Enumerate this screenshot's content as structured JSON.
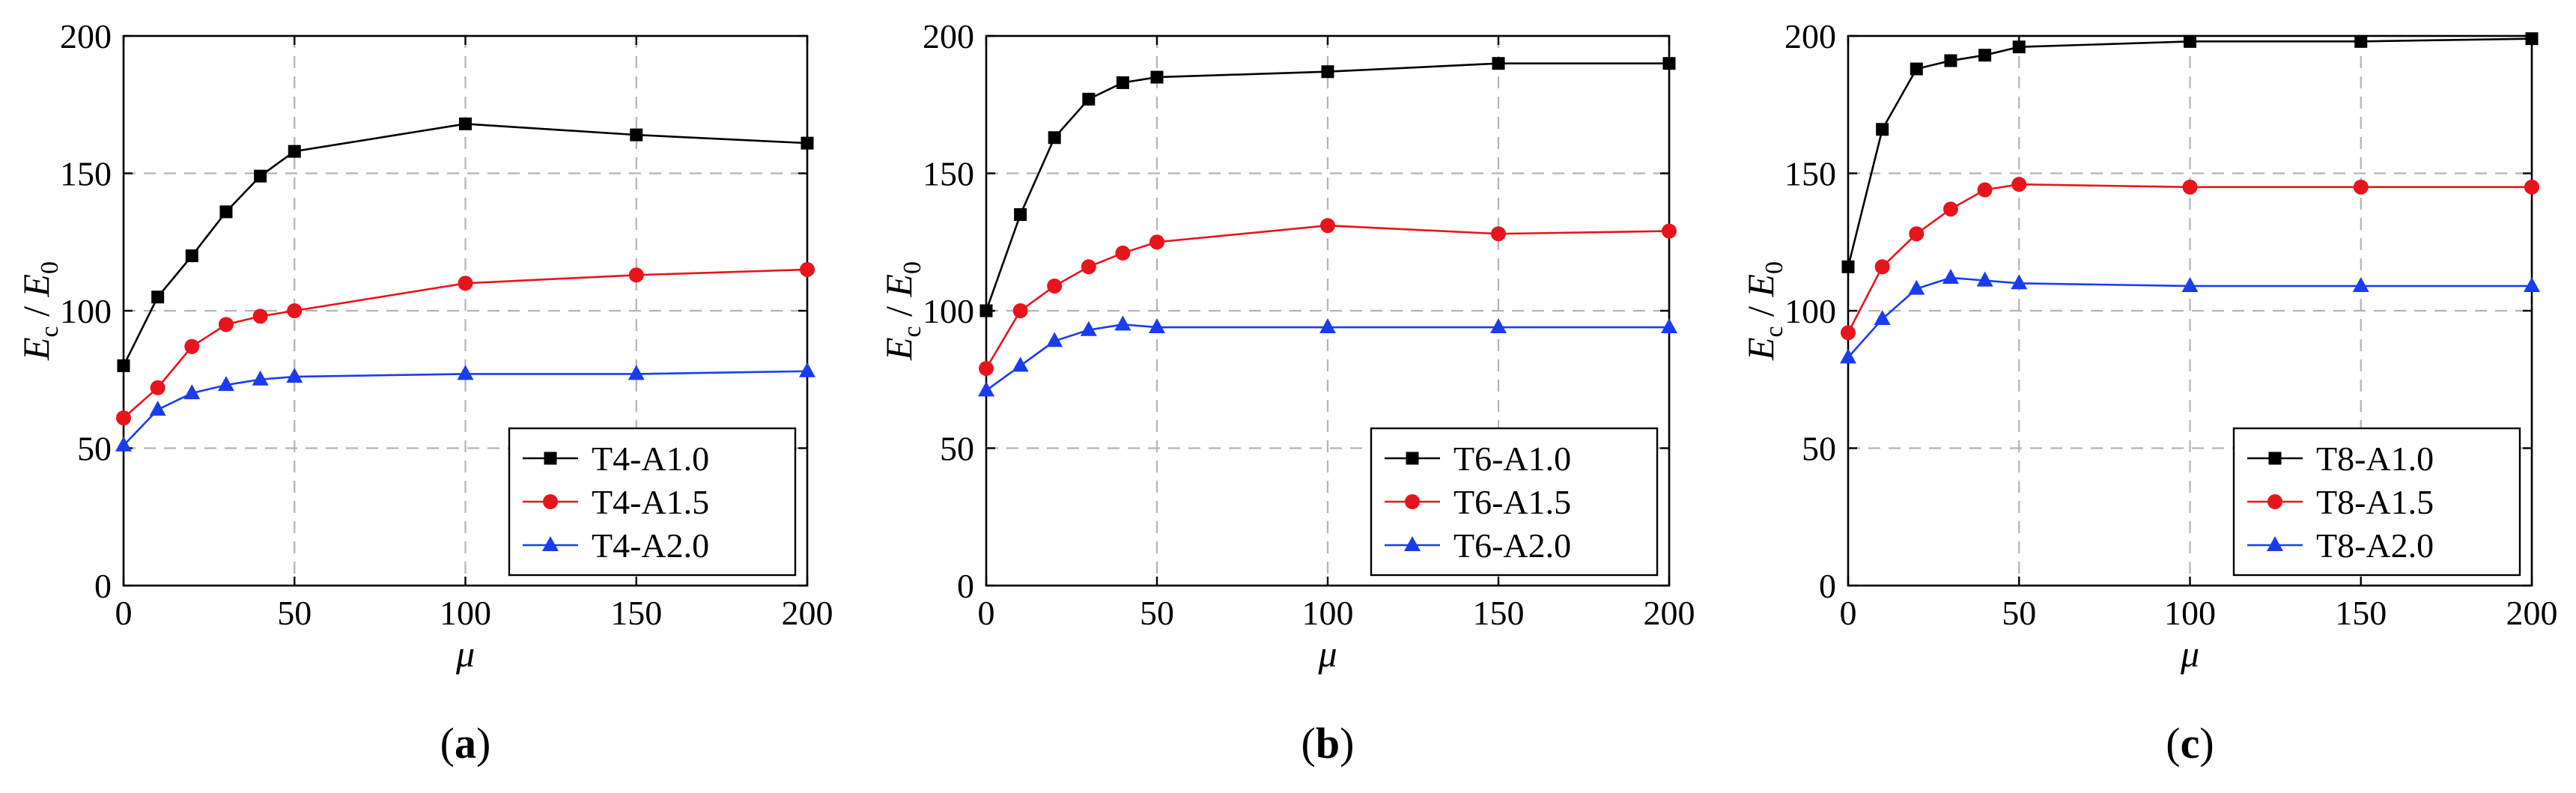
{
  "figure": {
    "ylabel_main": "E",
    "ylabel_sub": "c",
    "ylabel_sep": " / ",
    "ylabel_main2": "E",
    "ylabel_sub2": "0",
    "xlabel": "μ"
  },
  "chart_data": [
    {
      "type": "line",
      "panel_label": "(a)",
      "panel_letter": "a",
      "xlabel": "μ",
      "ylabel": "Ec / E0",
      "xlim": [
        0,
        200
      ],
      "ylim": [
        0,
        200
      ],
      "xticks": [
        0,
        50,
        100,
        150,
        200
      ],
      "yticks": [
        0,
        50,
        100,
        150,
        200
      ],
      "grid": true,
      "legend_position": "bottom-right",
      "x": [
        0,
        10,
        20,
        30,
        40,
        50,
        100,
        150,
        200
      ],
      "series": [
        {
          "name": "T4-A1.0",
          "marker": "square",
          "color": "#000000",
          "values": [
            80,
            105,
            120,
            136,
            149,
            158,
            168,
            164,
            161
          ]
        },
        {
          "name": "T4-A1.5",
          "marker": "circle",
          "color": "#e8141c",
          "values": [
            61,
            72,
            87,
            95,
            98,
            100,
            110,
            113,
            115
          ]
        },
        {
          "name": "T4-A2.0",
          "marker": "triangle",
          "color": "#1a3cf0",
          "values": [
            51,
            64,
            70,
            73,
            75,
            76,
            77,
            77,
            78
          ]
        }
      ]
    },
    {
      "type": "line",
      "panel_label": "(b)",
      "panel_letter": "b",
      "xlabel": "μ",
      "ylabel": "Ec / E0",
      "xlim": [
        0,
        200
      ],
      "ylim": [
        0,
        200
      ],
      "xticks": [
        0,
        50,
        100,
        150,
        200
      ],
      "yticks": [
        0,
        50,
        100,
        150,
        200
      ],
      "grid": true,
      "legend_position": "bottom-right",
      "x": [
        0,
        10,
        20,
        30,
        40,
        50,
        100,
        150,
        200
      ],
      "series": [
        {
          "name": "T6-A1.0",
          "marker": "square",
          "color": "#000000",
          "values": [
            100,
            135,
            163,
            177,
            183,
            185,
            187,
            190,
            190
          ]
        },
        {
          "name": "T6-A1.5",
          "marker": "circle",
          "color": "#e8141c",
          "values": [
            79,
            100,
            109,
            116,
            121,
            125,
            131,
            128,
            129
          ]
        },
        {
          "name": "T6-A2.0",
          "marker": "triangle",
          "color": "#1a3cf0",
          "values": [
            71,
            80,
            89,
            93,
            95,
            94,
            94,
            94,
            94
          ]
        }
      ]
    },
    {
      "type": "line",
      "panel_label": "(c)",
      "panel_letter": "c",
      "xlabel": "μ",
      "ylabel": "Ec / E0",
      "xlim": [
        0,
        200
      ],
      "ylim": [
        0,
        200
      ],
      "xticks": [
        0,
        50,
        100,
        150,
        200
      ],
      "yticks": [
        0,
        50,
        100,
        150,
        200
      ],
      "grid": true,
      "legend_position": "bottom-right",
      "x": [
        0,
        10,
        20,
        30,
        40,
        50,
        100,
        150,
        200
      ],
      "series": [
        {
          "name": "T8-A1.0",
          "marker": "square",
          "color": "#000000",
          "values": [
            116,
            166,
            188,
            191,
            193,
            196,
            198,
            198,
            199
          ]
        },
        {
          "name": "T8-A1.5",
          "marker": "circle",
          "color": "#e8141c",
          "values": [
            92,
            116,
            128,
            137,
            144,
            146,
            145,
            145,
            145
          ]
        },
        {
          "name": "T8-A2.0",
          "marker": "triangle",
          "color": "#1a3cf0",
          "values": [
            83,
            97,
            108,
            112,
            111,
            110,
            109,
            109,
            109
          ]
        }
      ]
    }
  ]
}
